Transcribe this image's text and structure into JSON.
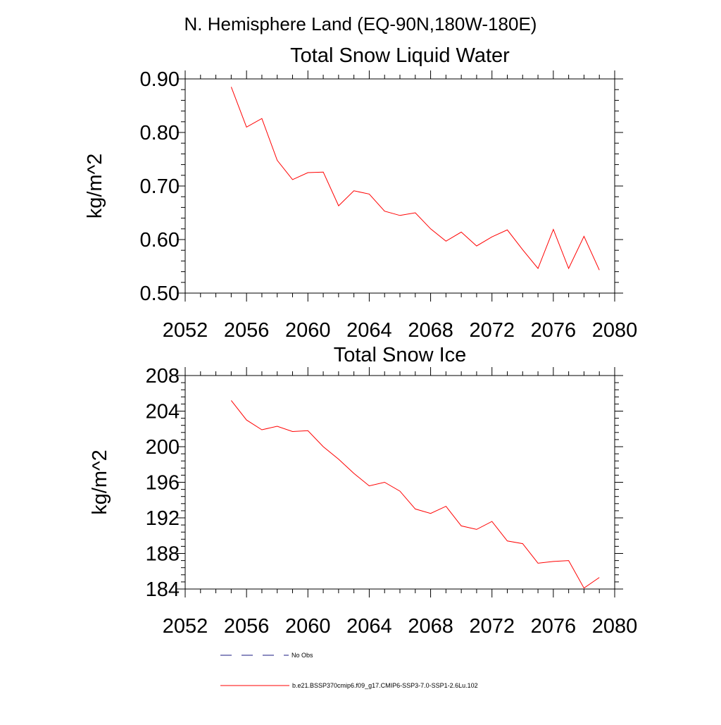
{
  "figure": {
    "suptitle": "N. Hemisphere Land (EQ-90N,180W-180E)"
  },
  "chart_data": [
    {
      "type": "line",
      "title": "Total Snow Liquid Water",
      "xlabel": "",
      "ylabel": "kg/m^2",
      "xlim": [
        2052,
        2080
      ],
      "ylim": [
        0.5,
        0.9
      ],
      "xticks": [
        "2052",
        "2056",
        "2060",
        "2064",
        "2068",
        "2072",
        "2076",
        "2080"
      ],
      "yticks": [
        "0.50",
        "0.60",
        "0.70",
        "0.80",
        "0.90"
      ],
      "grid": false,
      "series": [
        {
          "name": "b.e21.BSSP370cmip6.f09_g17.CMIP6-SSP3-7.0-SSP1-2.6Lu.102",
          "color": "#ff0000",
          "x": [
            2055,
            2056,
            2057,
            2058,
            2059,
            2060,
            2061,
            2062,
            2063,
            2064,
            2065,
            2066,
            2067,
            2068,
            2069,
            2070,
            2071,
            2072,
            2073,
            2074,
            2075,
            2076,
            2077,
            2078,
            2079
          ],
          "values": [
            0.885,
            0.81,
            0.826,
            0.748,
            0.712,
            0.725,
            0.726,
            0.663,
            0.691,
            0.685,
            0.653,
            0.645,
            0.65,
            0.62,
            0.597,
            0.614,
            0.588,
            0.605,
            0.618,
            0.581,
            0.546,
            0.619,
            0.546,
            0.606,
            0.543
          ]
        }
      ]
    },
    {
      "type": "line",
      "title": "Total Snow Ice",
      "xlabel": "",
      "ylabel": "kg/m^2",
      "xlim": [
        2052,
        2080
      ],
      "ylim": [
        184,
        208
      ],
      "xticks": [
        "2052",
        "2056",
        "2060",
        "2064",
        "2068",
        "2072",
        "2076",
        "2080"
      ],
      "yticks": [
        "184",
        "188",
        "192",
        "196",
        "200",
        "204",
        "208"
      ],
      "grid": false,
      "series": [
        {
          "name": "b.e21.BSSP370cmip6.f09_g17.CMIP6-SSP3-7.0-SSP1-2.6Lu.102",
          "color": "#ff0000",
          "x": [
            2055,
            2056,
            2057,
            2058,
            2059,
            2060,
            2061,
            2062,
            2063,
            2064,
            2065,
            2066,
            2067,
            2068,
            2069,
            2070,
            2071,
            2072,
            2073,
            2074,
            2075,
            2076,
            2077,
            2078,
            2079
          ],
          "values": [
            205.2,
            203.0,
            201.9,
            202.3,
            201.7,
            201.8,
            200.0,
            198.6,
            197.0,
            195.6,
            196.0,
            195.0,
            193.0,
            192.5,
            193.3,
            191.1,
            190.7,
            191.6,
            189.4,
            189.1,
            186.9,
            187.1,
            187.2,
            184.1,
            185.3
          ]
        }
      ]
    }
  ],
  "legend": {
    "entries": [
      {
        "label": "No Obs",
        "color": "#1a1a80",
        "style": "dashed"
      },
      {
        "label": "b.e21.BSSP370cmip6.f09_g17.CMIP6-SSP3-7.0-SSP1-2.6Lu.102",
        "color": "#ff0000",
        "style": "solid"
      }
    ]
  }
}
